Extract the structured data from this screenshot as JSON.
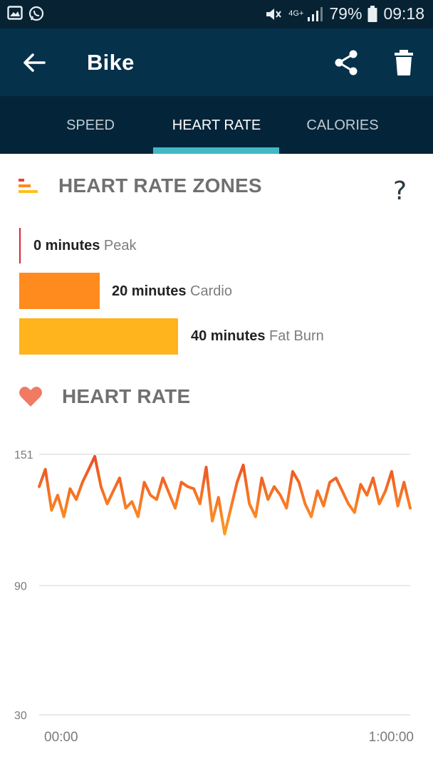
{
  "status_bar": {
    "icons_left": [
      "gallery-icon",
      "whatsapp-icon"
    ],
    "network": "4G+",
    "battery": "79%",
    "time": "09:18"
  },
  "app_bar": {
    "title": "Bike",
    "icons": [
      "back-arrow-icon",
      "share-icon",
      "trash-icon"
    ]
  },
  "tabs": [
    {
      "label": "SPEED",
      "active": false
    },
    {
      "label": "HEART RATE",
      "active": true
    },
    {
      "label": "CALORIES",
      "active": false
    }
  ],
  "zones": {
    "title": "HEART RATE ZONES",
    "help": "?",
    "items": [
      {
        "value": "0 minutes",
        "label": "Peak",
        "minutes": 0,
        "color": "#d9253c"
      },
      {
        "value": "20 minutes",
        "label": "Cardio",
        "minutes": 20,
        "color": "#ff8a1e"
      },
      {
        "value": "40 minutes",
        "label": "Fat Burn",
        "minutes": 40,
        "color": "#ffb31c"
      }
    ]
  },
  "heart_rate": {
    "title": "HEART RATE",
    "colors": {
      "line_high": "#ec4d24",
      "line_low": "#ff9a24",
      "grid": "#e2e2e2",
      "axis_text": "#7a7a7a"
    }
  },
  "chart_data": {
    "type": "line",
    "title": "HEART RATE",
    "xlabel": "",
    "ylabel": "",
    "x_range_minutes": [
      0,
      60
    ],
    "ylim": [
      30,
      151
    ],
    "y_ticks": [
      "151",
      "90",
      "30"
    ],
    "y_tick_values": [
      151,
      90,
      30
    ],
    "x_ticks": [
      "00:00",
      "1:00:00"
    ],
    "grid": true,
    "series": [
      {
        "x": [
          0,
          1,
          2,
          3,
          4,
          5,
          6,
          7,
          8,
          9,
          10,
          11,
          12,
          13,
          14,
          15,
          16,
          17,
          18,
          19,
          20,
          21,
          22,
          23,
          24,
          25,
          26,
          27,
          28,
          29,
          30,
          31,
          32,
          33,
          34,
          35,
          36,
          37,
          38,
          39,
          40,
          41,
          42,
          43,
          44,
          45,
          46,
          47,
          48,
          49,
          50,
          51,
          52,
          53,
          54,
          55,
          56,
          57,
          58,
          59,
          60
        ],
        "values": [
          136,
          144,
          125,
          132,
          122,
          135,
          130,
          138,
          144,
          150,
          136,
          128,
          134,
          140,
          126,
          129,
          122,
          138,
          132,
          130,
          140,
          133,
          126,
          138,
          136,
          135,
          128,
          145,
          120,
          131,
          114,
          126,
          138,
          146,
          128,
          122,
          140,
          130,
          136,
          132,
          126,
          143,
          138,
          128,
          122,
          134,
          127,
          138,
          140,
          134,
          128,
          124,
          137,
          132,
          140,
          128,
          134,
          143,
          127,
          138,
          126
        ]
      }
    ]
  }
}
